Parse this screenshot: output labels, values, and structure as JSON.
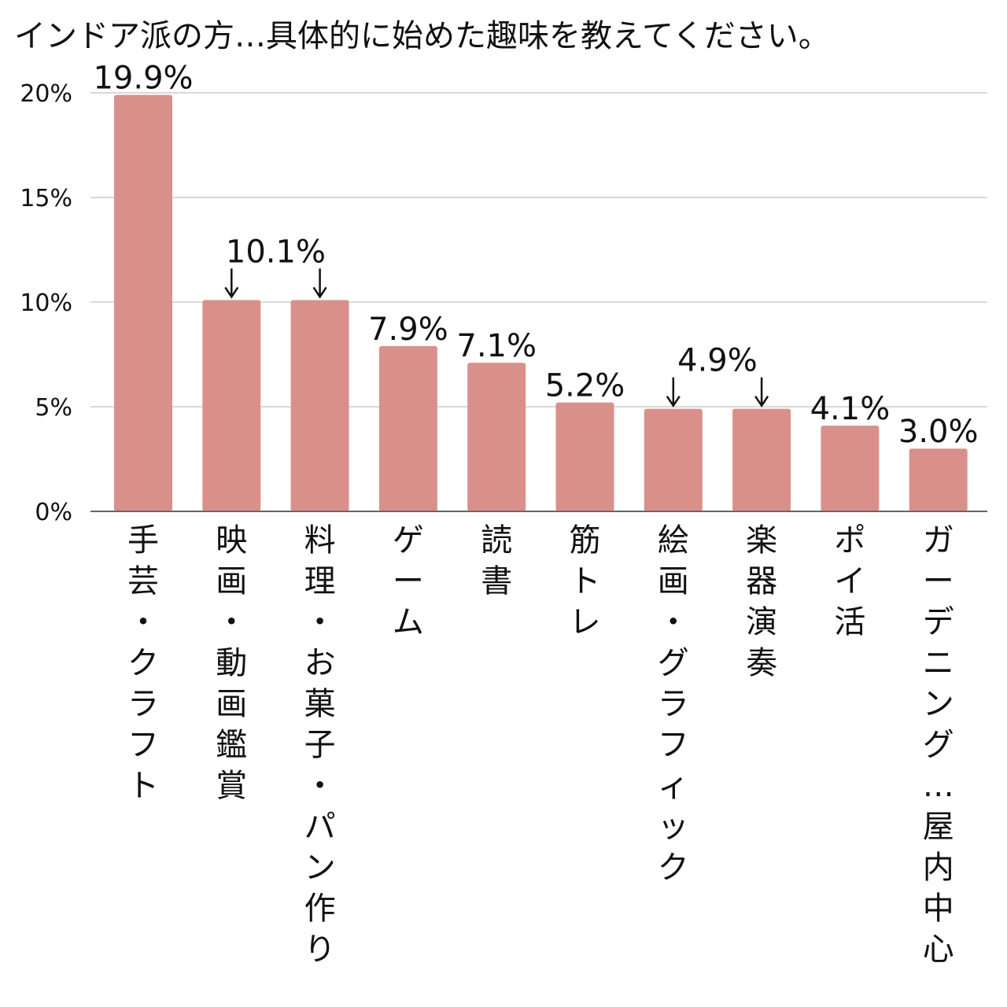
{
  "chart_data": {
    "type": "bar",
    "title": "インドア派の方…具体的に始めた趣味を教えてください。",
    "categories": [
      "手芸・クラフト",
      "映画・動画鑑賞",
      "料理・お菓子・パン作り",
      "ゲーム",
      "読書",
      "筋トレ",
      "絵画・グラフィック",
      "楽器演奏",
      "ポイ活",
      "ガーデニング…屋内中心"
    ],
    "values": [
      19.9,
      10.1,
      10.1,
      7.9,
      7.1,
      5.2,
      4.9,
      4.9,
      4.1,
      3.0
    ],
    "data_labels": [
      "19.9%",
      "10.1%",
      "",
      "7.9%",
      "7.1%",
      "5.2%",
      "4.9%",
      "",
      "4.1%",
      "3.0%"
    ],
    "shared_label_pairs": [
      [
        1,
        2
      ],
      [
        6,
        7
      ]
    ],
    "yticks": [
      "0%",
      "5%",
      "10%",
      "15%",
      "20%"
    ],
    "ytick_values": [
      0,
      5,
      10,
      15,
      20
    ],
    "ylim": [
      0,
      20
    ],
    "xlabel": "",
    "ylabel": "",
    "grid": true,
    "legend": "none",
    "bar_color": "#d9908b"
  }
}
